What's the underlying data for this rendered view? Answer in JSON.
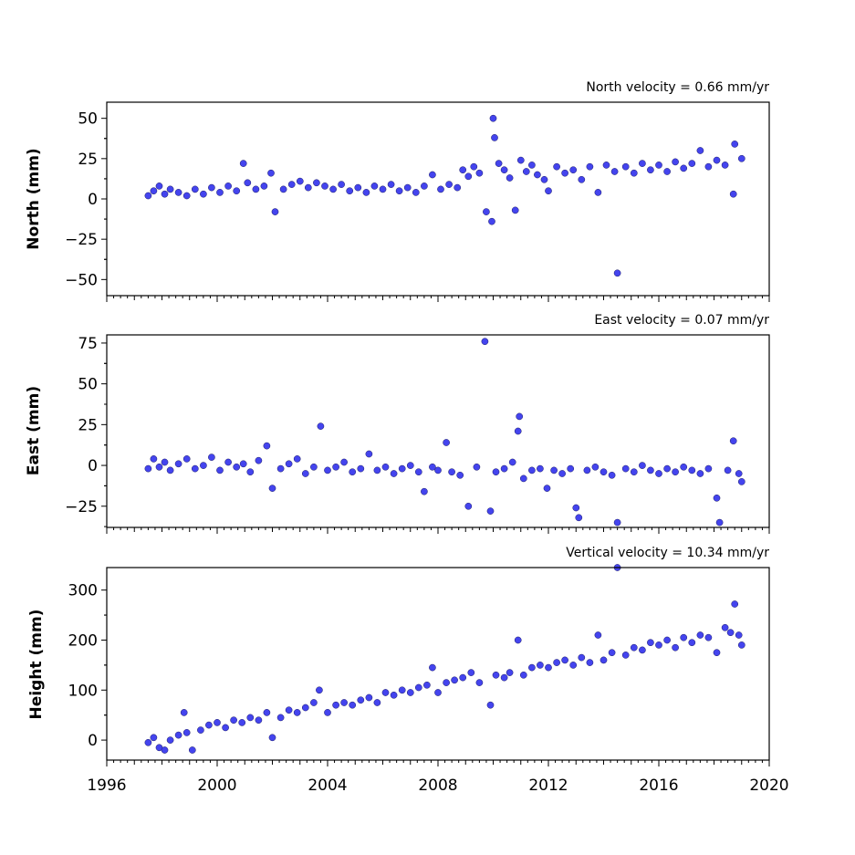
{
  "colors": {
    "marker_fill": "#4444ee",
    "marker_edge": "#1a1a66",
    "axis": "#000000",
    "background": "#ffffff"
  },
  "chart_data": [
    {
      "type": "scatter",
      "title": "North velocity = 0.66 mm/yr",
      "xlabel": "",
      "ylabel": "North (mm)",
      "xlim": [
        1996,
        2020
      ],
      "ylim": [
        -60,
        60
      ],
      "yticks": [
        -50,
        -25,
        0,
        25,
        50
      ],
      "yticklabels": [
        "−50",
        "−25",
        "0",
        "25",
        "50"
      ],
      "velocity_mm_per_yr": 0.66,
      "series": [
        {
          "points": [
            [
              1997.5,
              2
            ],
            [
              1997.7,
              5
            ],
            [
              1997.9,
              8
            ],
            [
              1998.1,
              3
            ],
            [
              1998.3,
              6
            ],
            [
              1998.6,
              4
            ],
            [
              1998.9,
              2
            ],
            [
              1999.2,
              6
            ],
            [
              1999.5,
              3
            ],
            [
              1999.8,
              7
            ],
            [
              2000.1,
              4
            ],
            [
              2000.4,
              8
            ],
            [
              2000.7,
              5
            ],
            [
              2000.95,
              22
            ],
            [
              2001.1,
              10
            ],
            [
              2001.4,
              6
            ],
            [
              2001.7,
              8
            ],
            [
              2001.95,
              16
            ],
            [
              2002.1,
              -8
            ],
            [
              2002.4,
              6
            ],
            [
              2002.7,
              9
            ],
            [
              2003.0,
              11
            ],
            [
              2003.3,
              7
            ],
            [
              2003.6,
              10
            ],
            [
              2003.9,
              8
            ],
            [
              2004.2,
              6
            ],
            [
              2004.5,
              9
            ],
            [
              2004.8,
              5
            ],
            [
              2005.1,
              7
            ],
            [
              2005.4,
              4
            ],
            [
              2005.7,
              8
            ],
            [
              2006.0,
              6
            ],
            [
              2006.3,
              9
            ],
            [
              2006.6,
              5
            ],
            [
              2006.9,
              7
            ],
            [
              2007.2,
              4
            ],
            [
              2007.5,
              8
            ],
            [
              2007.8,
              15
            ],
            [
              2008.1,
              6
            ],
            [
              2008.4,
              9
            ],
            [
              2008.7,
              7
            ],
            [
              2008.9,
              18
            ],
            [
              2009.1,
              14
            ],
            [
              2009.3,
              20
            ],
            [
              2009.5,
              16
            ],
            [
              2009.75,
              -8
            ],
            [
              2009.95,
              -14
            ],
            [
              2010.0,
              50
            ],
            [
              2010.05,
              38
            ],
            [
              2010.2,
              22
            ],
            [
              2010.4,
              18
            ],
            [
              2010.6,
              13
            ],
            [
              2010.8,
              -7
            ],
            [
              2011.0,
              24
            ],
            [
              2011.2,
              17
            ],
            [
              2011.4,
              21
            ],
            [
              2011.6,
              15
            ],
            [
              2011.85,
              12
            ],
            [
              2012.0,
              5
            ],
            [
              2012.3,
              20
            ],
            [
              2012.6,
              16
            ],
            [
              2012.9,
              18
            ],
            [
              2013.2,
              12
            ],
            [
              2013.5,
              20
            ],
            [
              2013.8,
              4
            ],
            [
              2014.1,
              21
            ],
            [
              2014.4,
              17
            ],
            [
              2014.5,
              -46
            ],
            [
              2014.8,
              20
            ],
            [
              2015.1,
              16
            ],
            [
              2015.4,
              22
            ],
            [
              2015.7,
              18
            ],
            [
              2016.0,
              21
            ],
            [
              2016.3,
              17
            ],
            [
              2016.6,
              23
            ],
            [
              2016.9,
              19
            ],
            [
              2017.2,
              22
            ],
            [
              2017.5,
              30
            ],
            [
              2017.8,
              20
            ],
            [
              2018.1,
              24
            ],
            [
              2018.4,
              21
            ],
            [
              2018.7,
              3
            ],
            [
              2018.75,
              34
            ],
            [
              2019.0,
              25
            ]
          ]
        }
      ]
    },
    {
      "type": "scatter",
      "title": "East velocity = 0.07 mm/yr",
      "xlabel": "",
      "ylabel": "East (mm)",
      "xlim": [
        1996,
        2020
      ],
      "ylim": [
        -38,
        80
      ],
      "yticks": [
        -25,
        0,
        25,
        50,
        75
      ],
      "yticklabels": [
        "−25",
        "0",
        "25",
        "50",
        "75"
      ],
      "velocity_mm_per_yr": 0.07,
      "series": [
        {
          "points": [
            [
              1997.5,
              -2
            ],
            [
              1997.7,
              4
            ],
            [
              1997.9,
              -1
            ],
            [
              1998.1,
              2
            ],
            [
              1998.3,
              -3
            ],
            [
              1998.6,
              1
            ],
            [
              1998.9,
              4
            ],
            [
              1999.2,
              -2
            ],
            [
              1999.5,
              0
            ],
            [
              1999.8,
              5
            ],
            [
              2000.1,
              -3
            ],
            [
              2000.4,
              2
            ],
            [
              2000.7,
              -1
            ],
            [
              2000.95,
              1
            ],
            [
              2001.2,
              -4
            ],
            [
              2001.5,
              3
            ],
            [
              2001.8,
              12
            ],
            [
              2002.0,
              -14
            ],
            [
              2002.3,
              -2
            ],
            [
              2002.6,
              1
            ],
            [
              2002.9,
              4
            ],
            [
              2003.2,
              -5
            ],
            [
              2003.5,
              -1
            ],
            [
              2003.75,
              24
            ],
            [
              2004.0,
              -3
            ],
            [
              2004.3,
              -1
            ],
            [
              2004.6,
              2
            ],
            [
              2004.9,
              -4
            ],
            [
              2005.2,
              -2
            ],
            [
              2005.5,
              7
            ],
            [
              2005.8,
              -3
            ],
            [
              2006.1,
              -1
            ],
            [
              2006.4,
              -5
            ],
            [
              2006.7,
              -2
            ],
            [
              2007.0,
              0
            ],
            [
              2007.3,
              -4
            ],
            [
              2007.5,
              -16
            ],
            [
              2007.8,
              -1
            ],
            [
              2008.0,
              -3
            ],
            [
              2008.3,
              14
            ],
            [
              2008.5,
              -4
            ],
            [
              2008.8,
              -6
            ],
            [
              2009.1,
              -25
            ],
            [
              2009.4,
              -1
            ],
            [
              2009.7,
              76
            ],
            [
              2009.9,
              -28
            ],
            [
              2010.1,
              -4
            ],
            [
              2010.4,
              -2
            ],
            [
              2010.7,
              2
            ],
            [
              2010.9,
              21
            ],
            [
              2010.95,
              30
            ],
            [
              2011.1,
              -8
            ],
            [
              2011.4,
              -3
            ],
            [
              2011.7,
              -2
            ],
            [
              2011.95,
              -14
            ],
            [
              2012.2,
              -3
            ],
            [
              2012.5,
              -5
            ],
            [
              2012.8,
              -2
            ],
            [
              2013.0,
              -26
            ],
            [
              2013.1,
              -32
            ],
            [
              2013.4,
              -3
            ],
            [
              2013.7,
              -1
            ],
            [
              2014.0,
              -4
            ],
            [
              2014.3,
              -6
            ],
            [
              2014.5,
              -35
            ],
            [
              2014.8,
              -2
            ],
            [
              2015.1,
              -4
            ],
            [
              2015.4,
              0
            ],
            [
              2015.7,
              -3
            ],
            [
              2016.0,
              -5
            ],
            [
              2016.3,
              -2
            ],
            [
              2016.6,
              -4
            ],
            [
              2016.9,
              -1
            ],
            [
              2017.2,
              -3
            ],
            [
              2017.5,
              -5
            ],
            [
              2017.8,
              -2
            ],
            [
              2018.1,
              -20
            ],
            [
              2018.2,
              -35
            ],
            [
              2018.5,
              -3
            ],
            [
              2018.7,
              15
            ],
            [
              2018.9,
              -5
            ],
            [
              2019.0,
              -10
            ]
          ]
        }
      ]
    },
    {
      "type": "scatter",
      "title": "Vertical velocity = 10.34 mm/yr",
      "xlabel": "",
      "ylabel": "Height (mm)",
      "xlim": [
        1996,
        2020
      ],
      "ylim": [
        -40,
        345
      ],
      "yticks": [
        0,
        100,
        200,
        300
      ],
      "yticklabels": [
        "0",
        "100",
        "200",
        "300"
      ],
      "velocity_mm_per_yr": 10.34,
      "series": [
        {
          "points": [
            [
              1997.5,
              -5
            ],
            [
              1997.7,
              5
            ],
            [
              1997.9,
              -15
            ],
            [
              1998.1,
              -20
            ],
            [
              1998.3,
              0
            ],
            [
              1998.6,
              10
            ],
            [
              1998.8,
              55
            ],
            [
              1998.9,
              15
            ],
            [
              1999.1,
              -20
            ],
            [
              1999.4,
              20
            ],
            [
              1999.7,
              30
            ],
            [
              2000.0,
              35
            ],
            [
              2000.3,
              25
            ],
            [
              2000.6,
              40
            ],
            [
              2000.9,
              35
            ],
            [
              2001.2,
              45
            ],
            [
              2001.5,
              40
            ],
            [
              2001.8,
              55
            ],
            [
              2002.0,
              5
            ],
            [
              2002.3,
              45
            ],
            [
              2002.6,
              60
            ],
            [
              2002.9,
              55
            ],
            [
              2003.2,
              65
            ],
            [
              2003.5,
              75
            ],
            [
              2003.7,
              100
            ],
            [
              2004.0,
              55
            ],
            [
              2004.3,
              70
            ],
            [
              2004.6,
              75
            ],
            [
              2004.9,
              70
            ],
            [
              2005.2,
              80
            ],
            [
              2005.5,
              85
            ],
            [
              2005.8,
              75
            ],
            [
              2006.1,
              95
            ],
            [
              2006.4,
              90
            ],
            [
              2006.7,
              100
            ],
            [
              2007.0,
              95
            ],
            [
              2007.3,
              105
            ],
            [
              2007.6,
              110
            ],
            [
              2007.8,
              145
            ],
            [
              2008.0,
              95
            ],
            [
              2008.3,
              115
            ],
            [
              2008.6,
              120
            ],
            [
              2008.9,
              125
            ],
            [
              2009.2,
              135
            ],
            [
              2009.5,
              115
            ],
            [
              2009.9,
              70
            ],
            [
              2010.1,
              130
            ],
            [
              2010.4,
              125
            ],
            [
              2010.6,
              135
            ],
            [
              2010.9,
              200
            ],
            [
              2011.1,
              130
            ],
            [
              2011.4,
              145
            ],
            [
              2011.7,
              150
            ],
            [
              2012.0,
              145
            ],
            [
              2012.3,
              155
            ],
            [
              2012.6,
              160
            ],
            [
              2012.9,
              150
            ],
            [
              2013.2,
              165
            ],
            [
              2013.5,
              155
            ],
            [
              2013.8,
              210
            ],
            [
              2014.0,
              160
            ],
            [
              2014.3,
              175
            ],
            [
              2014.5,
              345
            ],
            [
              2014.8,
              170
            ],
            [
              2015.1,
              185
            ],
            [
              2015.4,
              180
            ],
            [
              2015.7,
              195
            ],
            [
              2016.0,
              190
            ],
            [
              2016.3,
              200
            ],
            [
              2016.6,
              185
            ],
            [
              2016.9,
              205
            ],
            [
              2017.2,
              195
            ],
            [
              2017.5,
              210
            ],
            [
              2017.8,
              205
            ],
            [
              2018.1,
              175
            ],
            [
              2018.4,
              225
            ],
            [
              2018.6,
              215
            ],
            [
              2018.75,
              272
            ],
            [
              2018.9,
              210
            ],
            [
              2019.0,
              190
            ]
          ]
        }
      ]
    }
  ],
  "x_axis": {
    "ticks": [
      1996,
      2000,
      2004,
      2008,
      2012,
      2016,
      2020
    ],
    "ticklabels": [
      "1996",
      "2000",
      "2004",
      "2008",
      "2012",
      "2016",
      "2020"
    ]
  }
}
